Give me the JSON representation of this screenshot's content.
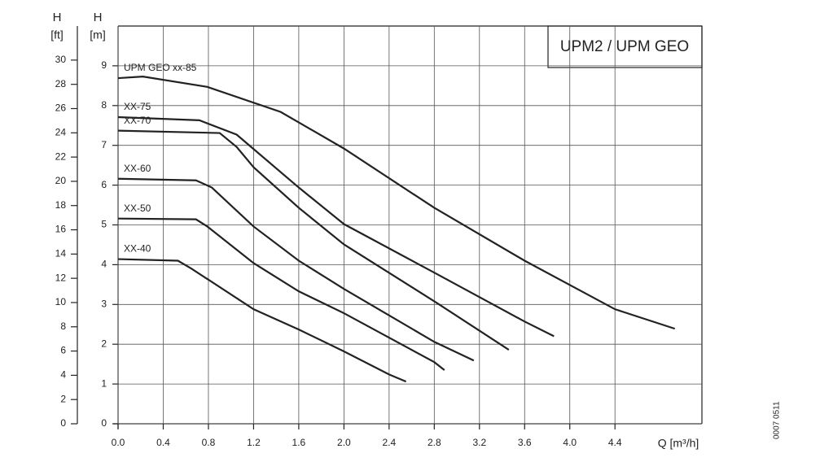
{
  "chart_data": {
    "type": "line",
    "title": "UPM2 / UPM GEO",
    "xlabel": "Q [m³/h]",
    "ylabel": [
      "H",
      "[m]"
    ],
    "y2label": [
      "H",
      "[ft]"
    ],
    "code": "0007 0511",
    "xlim": [
      0,
      5.17
    ],
    "ylim": [
      0,
      10
    ],
    "y2lim": [
      0,
      32.81
    ],
    "xticks": [
      {
        "value": 0,
        "label": "0.0"
      },
      0.4,
      0.8,
      1.2,
      1.6,
      {
        "value": 2,
        "label": "2.0"
      },
      2.4,
      2.8,
      3.2,
      3.6,
      {
        "value": 4,
        "label": "4.0"
      },
      4.4
    ],
    "yticks": [
      0,
      1,
      2,
      3,
      4,
      5,
      6,
      7,
      8,
      9
    ],
    "y2ticks": [
      0,
      2,
      4,
      6,
      8,
      10,
      12,
      14,
      16,
      18,
      20,
      22,
      24,
      26,
      28,
      30
    ],
    "grid": true,
    "series": [
      {
        "name": "UPM GEO xx-85",
        "color": "#222222",
        "x": [
          0,
          0.22,
          0.79,
          1.44,
          2.0,
          2.8,
          3.6,
          4.4,
          4.93
        ],
        "values": [
          8.69,
          8.73,
          8.47,
          7.84,
          6.92,
          5.43,
          4.1,
          2.88,
          2.39
        ]
      },
      {
        "name": "XX-75",
        "color": "#222222",
        "x": [
          0,
          0.72,
          1.05,
          1.6,
          2.0,
          2.8,
          3.6,
          3.86
        ],
        "values": [
          7.71,
          7.63,
          7.27,
          5.94,
          5.02,
          3.8,
          2.57,
          2.2
        ]
      },
      {
        "name": "XX-70",
        "color": "#222222",
        "x": [
          0,
          0.9,
          1.05,
          1.2,
          1.6,
          2.0,
          2.8,
          3.46
        ],
        "values": [
          7.37,
          7.31,
          6.96,
          6.45,
          5.43,
          4.51,
          3.08,
          1.86
        ]
      },
      {
        "name": "XX-60",
        "color": "#222222",
        "x": [
          0,
          0.69,
          0.83,
          1.2,
          1.6,
          2.0,
          2.8,
          3.15
        ],
        "values": [
          6.16,
          6.12,
          5.94,
          4.96,
          4.1,
          3.39,
          2.06,
          1.59
        ]
      },
      {
        "name": "XX-50",
        "color": "#222222",
        "x": [
          0,
          0.69,
          0.79,
          1.2,
          1.6,
          2.0,
          2.8,
          2.89
        ],
        "values": [
          5.16,
          5.14,
          4.96,
          4.04,
          3.33,
          2.78,
          1.55,
          1.35
        ]
      },
      {
        "name": "XX-40",
        "color": "#222222",
        "x": [
          0,
          0.53,
          0.65,
          1.2,
          1.6,
          2.0,
          2.4,
          2.55
        ],
        "values": [
          4.14,
          4.1,
          3.9,
          2.88,
          2.37,
          1.82,
          1.24,
          1.06
        ]
      }
    ]
  }
}
